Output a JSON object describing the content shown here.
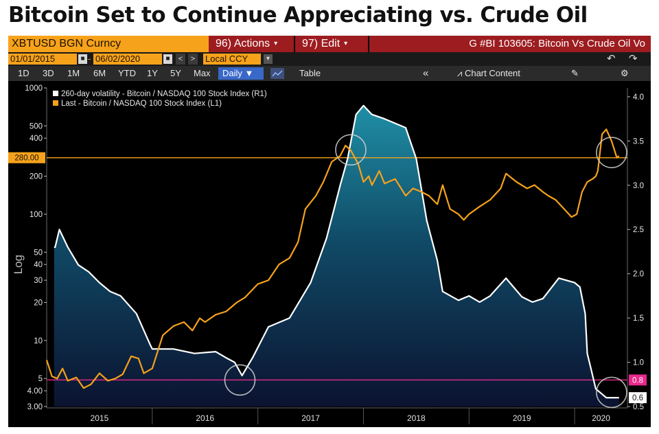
{
  "headline": "Bitcoin Set to Continue Appreciating vs. Crude Oil",
  "toolbar": {
    "ticker": "XBTUSD BGN Curncy",
    "actions": "96) Actions",
    "edit": "97) Edit",
    "graph_title": "G #BI 103605: Bitcoin Vs Crude Oil Vo",
    "start_date": "01/01/2015",
    "end_date": "06/02/2020",
    "nav_prev": "<",
    "nav_next": ">",
    "currency": "Local CCY",
    "periods": [
      "1D",
      "3D",
      "1M",
      "6M",
      "YTD",
      "1Y",
      "5Y",
      "Max"
    ],
    "frequency": "Daily",
    "table": "Table",
    "collapse": "«",
    "chart_content": "Chart Content"
  },
  "colors": {
    "orange": "#f7a21b",
    "volatility_line": "#ffffff",
    "fill_top": "#1f8fa6",
    "fill_bottom": "#0b1330",
    "magenta": "#e8288a",
    "burgundy": "#9d1c20"
  },
  "chart_data": {
    "type": "line",
    "left_axis": {
      "scale": "log",
      "label": "Log",
      "ylim": [
        3,
        1000
      ],
      "ticks": [
        {
          "v": 1000,
          "t": "1000"
        },
        {
          "v": 500,
          "t": "500"
        },
        {
          "v": 400,
          "t": "400"
        },
        {
          "v": 200,
          "t": "200"
        },
        {
          "v": 100,
          "t": "100"
        },
        {
          "v": 50,
          "t": "50"
        },
        {
          "v": 40,
          "t": "40"
        },
        {
          "v": 30,
          "t": "30"
        },
        {
          "v": 20,
          "t": "20"
        },
        {
          "v": 10,
          "t": "10"
        },
        {
          "v": 5,
          "t": "5"
        },
        {
          "v": 4,
          "t": "4.00"
        },
        {
          "v": 3,
          "t": "3.00"
        }
      ]
    },
    "right_axis": {
      "scale": "linear",
      "ylim": [
        0.5,
        4.1
      ],
      "ticks": [
        {
          "v": 4.0,
          "t": "4.0"
        },
        {
          "v": 3.5,
          "t": "3.5"
        },
        {
          "v": 3.0,
          "t": "3.0"
        },
        {
          "v": 2.5,
          "t": "2.5"
        },
        {
          "v": 2.0,
          "t": "2.0"
        },
        {
          "v": 1.5,
          "t": "1.5"
        },
        {
          "v": 1.0,
          "t": "1.0"
        },
        {
          "v": 0.5,
          "t": "0.5"
        }
      ]
    },
    "x_axis": {
      "start_year": 2015,
      "end_year": 2020.5,
      "labels": [
        "2015",
        "2016",
        "2017",
        "2018",
        "2019",
        "2020"
      ]
    },
    "reference_lines": [
      {
        "axis": "left",
        "value": 280,
        "label": "280.00",
        "color": "#f7a21b"
      },
      {
        "axis": "right",
        "value": 0.8,
        "label": "0.8",
        "color": "#e8288a"
      }
    ],
    "last_value_labels": [
      {
        "axis": "right",
        "value": 0.6,
        "label": "0.6"
      }
    ],
    "series": [
      {
        "name": "260-day volatility - Bitcoin / NASDAQ 100 Stock Index (R1)",
        "axis": "right",
        "x": [
          2015.07,
          2015.08,
          2015.12,
          2015.2,
          2015.3,
          2015.4,
          2015.5,
          2015.6,
          2015.7,
          2015.85,
          2015.98,
          2016.0,
          2016.2,
          2016.4,
          2016.6,
          2016.7,
          2016.78,
          2016.85,
          2016.95,
          2017.1,
          2017.3,
          2017.5,
          2017.65,
          2017.78,
          2017.85,
          2017.93,
          2018.0,
          2018.08,
          2018.2,
          2018.4,
          2018.5,
          2018.6,
          2018.7,
          2018.75,
          2018.9,
          2019.0,
          2019.1,
          2019.2,
          2019.35,
          2019.5,
          2019.6,
          2019.7,
          2019.85,
          2020.0,
          2020.05,
          2020.1,
          2020.12,
          2020.15,
          2020.2,
          2020.3,
          2020.42
        ],
        "values": [
          2.3,
          2.3,
          2.5,
          2.3,
          2.1,
          2.02,
          1.9,
          1.8,
          1.75,
          1.55,
          1.2,
          1.15,
          1.15,
          1.1,
          1.12,
          1.05,
          1.0,
          0.85,
          1.05,
          1.4,
          1.5,
          1.9,
          2.4,
          3.0,
          3.3,
          3.8,
          3.9,
          3.8,
          3.75,
          3.65,
          3.3,
          2.6,
          2.15,
          1.8,
          1.7,
          1.75,
          1.68,
          1.75,
          1.95,
          1.74,
          1.68,
          1.72,
          1.95,
          1.9,
          1.85,
          1.55,
          1.1,
          0.95,
          0.7,
          0.6,
          0.6
        ]
      },
      {
        "name": "Last - Bitcoin / NASDAQ 100 Stock Index (L1)",
        "axis": "left",
        "x": [
          2015.0,
          2015.05,
          2015.1,
          2015.15,
          2015.2,
          2015.28,
          2015.35,
          2015.42,
          2015.5,
          2015.58,
          2015.65,
          2015.72,
          2015.8,
          2015.87,
          2015.92,
          2016.0,
          2016.1,
          2016.2,
          2016.3,
          2016.38,
          2016.45,
          2016.5,
          2016.6,
          2016.7,
          2016.8,
          2016.88,
          2017.0,
          2017.1,
          2017.2,
          2017.3,
          2017.38,
          2017.45,
          2017.55,
          2017.62,
          2017.7,
          2017.78,
          2017.83,
          2017.88,
          2017.95,
          2018.0,
          2018.05,
          2018.08,
          2018.15,
          2018.2,
          2018.3,
          2018.4,
          2018.47,
          2018.55,
          2018.62,
          2018.7,
          2018.75,
          2018.82,
          2018.9,
          2018.95,
          2019.0,
          2019.1,
          2019.2,
          2019.3,
          2019.35,
          2019.45,
          2019.55,
          2019.62,
          2019.7,
          2019.75,
          2019.82,
          2019.9,
          2019.97,
          2020.02,
          2020.07,
          2020.12,
          2020.17,
          2020.2,
          2020.22,
          2020.26,
          2020.3,
          2020.35,
          2020.4,
          2020.42
        ],
        "values": [
          7,
          5.2,
          5,
          6,
          4.8,
          5.1,
          4.2,
          4.5,
          5.5,
          4.8,
          5,
          5.4,
          7.5,
          7.2,
          5.5,
          6,
          11,
          13,
          14,
          12,
          15,
          14,
          16,
          17,
          20,
          22,
          28,
          30,
          40,
          45,
          60,
          110,
          140,
          180,
          260,
          290,
          350,
          320,
          250,
          180,
          200,
          170,
          220,
          175,
          190,
          140,
          160,
          150,
          140,
          120,
          170,
          110,
          100,
          90,
          100,
          115,
          130,
          160,
          210,
          180,
          160,
          170,
          150,
          140,
          130,
          110,
          95,
          100,
          150,
          180,
          190,
          200,
          220,
          430,
          470,
          380,
          280,
          290
        ]
      }
    ],
    "circled_points": [
      {
        "axis": "right",
        "x": 2016.83,
        "value": 0.8
      },
      {
        "axis": "right",
        "x": 2017.88,
        "value": 3.4
      },
      {
        "axis": "right",
        "x": 2020.35,
        "value": 3.37
      },
      {
        "axis": "right",
        "x": 2020.35,
        "value": 0.66
      }
    ]
  }
}
